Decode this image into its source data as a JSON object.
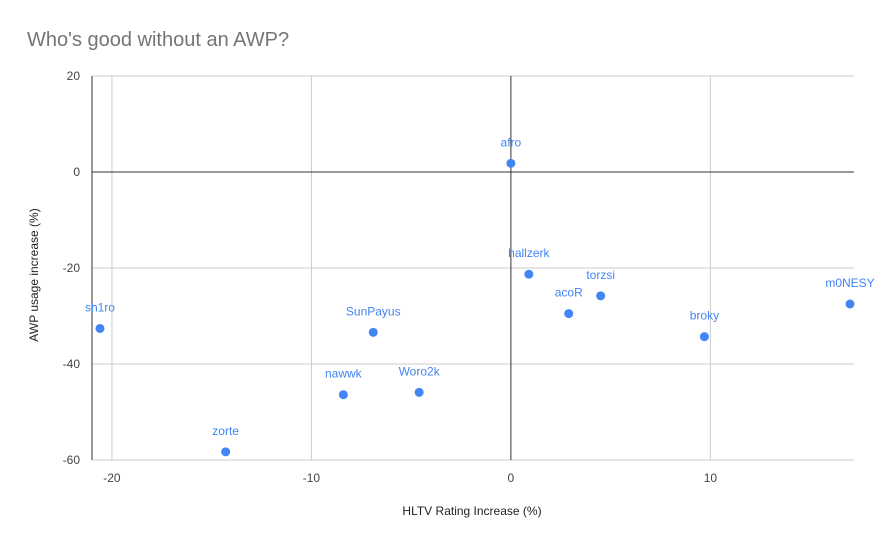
{
  "chart_data": {
    "type": "scatter",
    "title": "Who's good without an AWP?",
    "xlabel": "HLTV Rating Increase (%)",
    "ylabel": "AWP usage increase (%)",
    "xlim": [
      -21,
      17.2
    ],
    "ylim": [
      -60,
      20
    ],
    "xticks": [
      -20,
      -10,
      0,
      10
    ],
    "yticks": [
      -60,
      -40,
      -20,
      0,
      20
    ],
    "grid": true,
    "point_color": "#4285f4",
    "points": [
      {
        "label": "afro",
        "x": 0,
        "y": 1.8
      },
      {
        "label": "hallzerk",
        "x": 0.9,
        "y": -21.3
      },
      {
        "label": "torzsi",
        "x": 4.5,
        "y": -25.8
      },
      {
        "label": "acoR",
        "x": 2.9,
        "y": -29.5
      },
      {
        "label": "m0NESY",
        "x": 17,
        "y": -27.5
      },
      {
        "label": "broky",
        "x": 9.7,
        "y": -34.3
      },
      {
        "label": "sh1ro",
        "x": -20.6,
        "y": -32.6
      },
      {
        "label": "SunPayus",
        "x": -6.9,
        "y": -33.4
      },
      {
        "label": "nawwk",
        "x": -8.4,
        "y": -46.4
      },
      {
        "label": "Woro2k",
        "x": -4.6,
        "y": -45.9
      },
      {
        "label": "zorte",
        "x": -14.3,
        "y": -58.3
      }
    ]
  }
}
